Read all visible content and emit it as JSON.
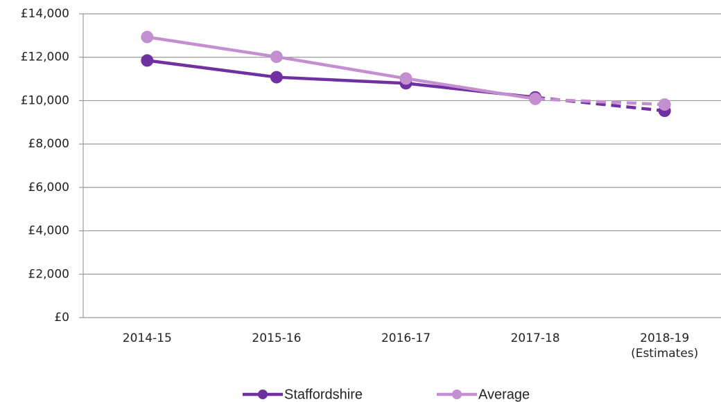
{
  "chart_data": {
    "type": "line",
    "categories": [
      "2014-15",
      "2015-16",
      "2016-17",
      "2017-18",
      "2018-19 (Estimates)"
    ],
    "series": [
      {
        "name": "Staffordshire",
        "color": "#7030a0",
        "values": [
          11850,
          11080,
          10800,
          10150,
          9530
        ]
      },
      {
        "name": "Average",
        "color": "#c48fd0",
        "values": [
          12930,
          12020,
          11020,
          10080,
          9820
        ]
      }
    ],
    "dashed_after": "2017-18",
    "ylim": [
      0,
      14000
    ],
    "yticks": [
      {
        "value": 0,
        "label": "£0"
      },
      {
        "value": 2000,
        "label": "£2,000"
      },
      {
        "value": 4000,
        "label": "£4,000"
      },
      {
        "value": 6000,
        "label": "£6,000"
      },
      {
        "value": 8000,
        "label": "£8,000"
      },
      {
        "value": 10000,
        "label": "£10,000"
      },
      {
        "value": 12000,
        "label": "£12,000"
      },
      {
        "value": 14000,
        "label": "£14,000"
      }
    ],
    "grid": true,
    "legend": "bottom"
  }
}
